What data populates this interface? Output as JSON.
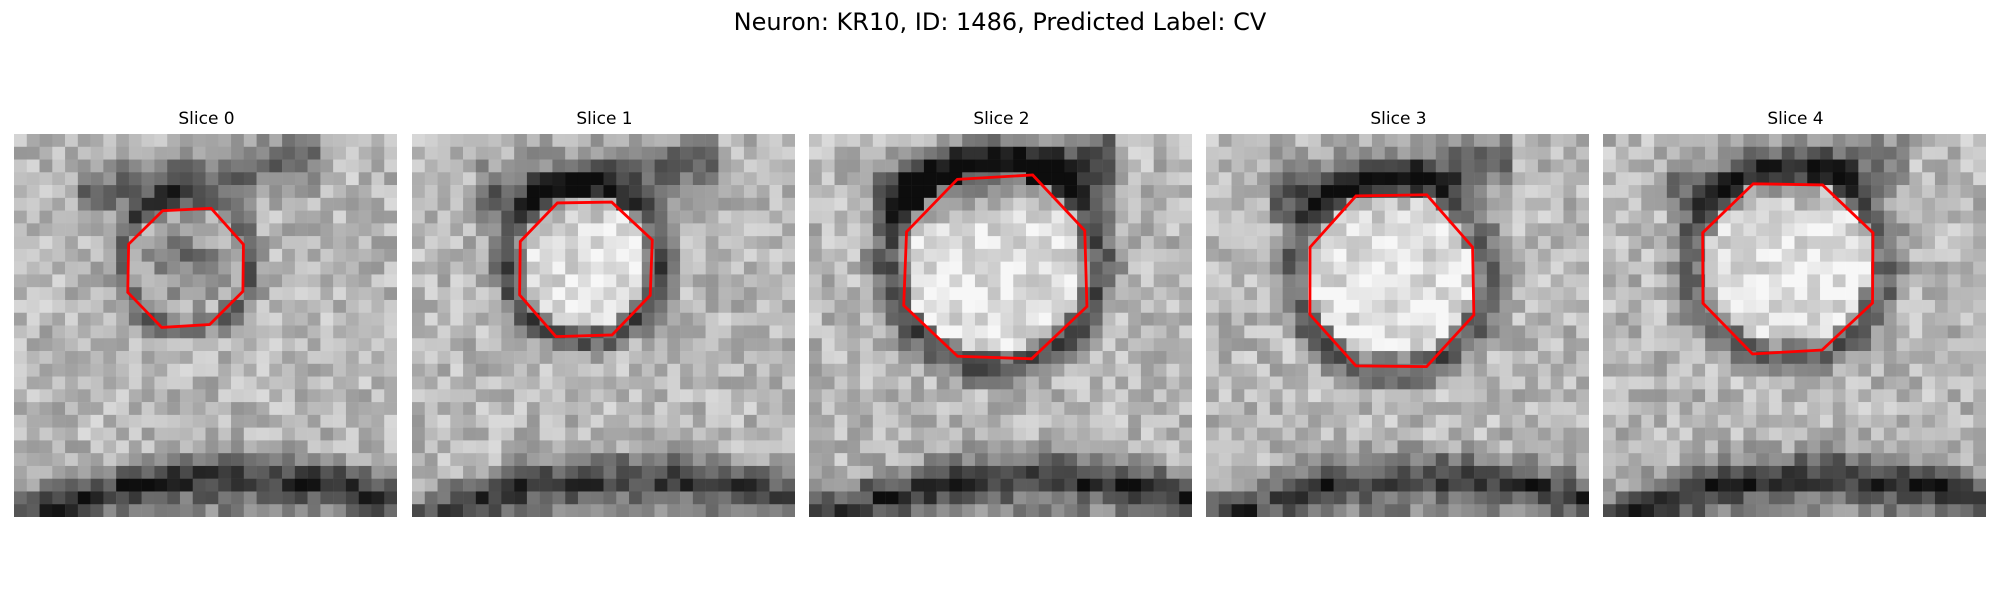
{
  "figure": {
    "title": "Neuron: KR10, ID: 1486, Predicted Label: CV"
  },
  "slices": [
    {
      "title": "Slice 0",
      "seed": 11,
      "blob": "dark"
    },
    {
      "title": "Slice 1",
      "seed": 23,
      "blob": "light"
    },
    {
      "title": "Slice 2",
      "seed": 37,
      "blob": "light"
    },
    {
      "title": "Slice 3",
      "seed": 41,
      "blob": "light"
    },
    {
      "title": "Slice 4",
      "seed": 53,
      "blob": "light"
    }
  ],
  "colors": {
    "contour": "#ff0000",
    "background": "#ffffff"
  }
}
